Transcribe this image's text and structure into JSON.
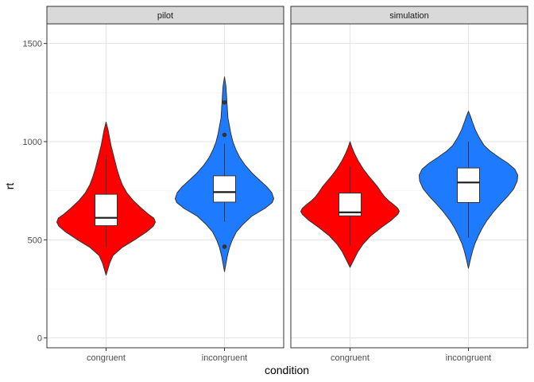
{
  "chart_data": {
    "type": "violin",
    "xlabel": "condition",
    "ylabel": "rt",
    "ylim": [
      -50,
      1600
    ],
    "yticks": [
      0,
      500,
      1000,
      1500
    ],
    "categories": [
      "congruent",
      "incongruent"
    ],
    "grid": true,
    "colors": {
      "congruent": "#ff0000",
      "incongruent": "#1e7bff"
    },
    "facets": [
      {
        "name": "pilot",
        "groups": [
          {
            "category": "congruent",
            "ymin": 320,
            "ymax": 1100,
            "profile": [
              [
                320,
                0.0
              ],
              [
                380,
                0.07
              ],
              [
                420,
                0.14
              ],
              [
                460,
                0.32
              ],
              [
                500,
                0.58
              ],
              [
                540,
                0.82
              ],
              [
                570,
                0.96
              ],
              [
                590,
                1.0
              ],
              [
                610,
                0.97
              ],
              [
                630,
                0.86
              ],
              [
                660,
                0.72
              ],
              [
                700,
                0.55
              ],
              [
                740,
                0.42
              ],
              [
                780,
                0.33
              ],
              [
                820,
                0.27
              ],
              [
                860,
                0.22
              ],
              [
                900,
                0.18
              ],
              [
                940,
                0.14
              ],
              [
                980,
                0.1
              ],
              [
                1020,
                0.07
              ],
              [
                1060,
                0.04
              ],
              [
                1100,
                0.0
              ]
            ],
            "box": {
              "q1": 572,
              "median": 612,
              "q3": 732,
              "whisker_low": 460,
              "whisker_high": 930
            },
            "outliers": []
          },
          {
            "category": "incongruent",
            "ymin": 338,
            "ymax": 1330,
            "profile": [
              [
                338,
                0.0
              ],
              [
                380,
                0.03
              ],
              [
                420,
                0.06
              ],
              [
                460,
                0.1
              ],
              [
                500,
                0.16
              ],
              [
                540,
                0.24
              ],
              [
                580,
                0.38
              ],
              [
                620,
                0.55
              ],
              [
                660,
                0.82
              ],
              [
                690,
                0.97
              ],
              [
                710,
                1.0
              ],
              [
                740,
                0.96
              ],
              [
                770,
                0.86
              ],
              [
                800,
                0.73
              ],
              [
                840,
                0.56
              ],
              [
                880,
                0.42
              ],
              [
                920,
                0.31
              ],
              [
                960,
                0.23
              ],
              [
                1000,
                0.17
              ],
              [
                1040,
                0.13
              ],
              [
                1080,
                0.1
              ],
              [
                1120,
                0.07
              ],
              [
                1160,
                0.06
              ],
              [
                1200,
                0.05
              ],
              [
                1240,
                0.04
              ],
              [
                1280,
                0.03
              ],
              [
                1330,
                0.0
              ]
            ],
            "box": {
              "q1": 692,
              "median": 743,
              "q3": 826,
              "whisker_low": 592,
              "whisker_high": 990
            },
            "outliers": [
              465,
              1035,
              1200
            ]
          }
        ]
      },
      {
        "name": "simulation",
        "groups": [
          {
            "category": "congruent",
            "ymin": 360,
            "ymax": 1000,
            "profile": [
              [
                360,
                0.0
              ],
              [
                400,
                0.08
              ],
              [
                440,
                0.16
              ],
              [
                480,
                0.27
              ],
              [
                520,
                0.42
              ],
              [
                560,
                0.62
              ],
              [
                600,
                0.84
              ],
              [
                630,
                0.97
              ],
              [
                645,
                1.0
              ],
              [
                660,
                0.97
              ],
              [
                680,
                0.88
              ],
              [
                700,
                0.78
              ],
              [
                720,
                0.7
              ],
              [
                740,
                0.64
              ],
              [
                770,
                0.56
              ],
              [
                800,
                0.46
              ],
              [
                830,
                0.36
              ],
              [
                860,
                0.27
              ],
              [
                900,
                0.17
              ],
              [
                940,
                0.09
              ],
              [
                970,
                0.04
              ],
              [
                1000,
                0.0
              ]
            ],
            "box": {
              "q1": 622,
              "median": 640,
              "q3": 738,
              "whisker_low": 470,
              "whisker_high": 875
            },
            "outliers": []
          },
          {
            "category": "incongruent",
            "ymin": 355,
            "ymax": 1155,
            "profile": [
              [
                355,
                0.0
              ],
              [
                400,
                0.04
              ],
              [
                440,
                0.08
              ],
              [
                480,
                0.13
              ],
              [
                520,
                0.2
              ],
              [
                560,
                0.28
              ],
              [
                600,
                0.38
              ],
              [
                640,
                0.5
              ],
              [
                680,
                0.64
              ],
              [
                720,
                0.79
              ],
              [
                760,
                0.92
              ],
              [
                800,
                0.99
              ],
              [
                830,
                1.0
              ],
              [
                860,
                0.94
              ],
              [
                890,
                0.8
              ],
              [
                920,
                0.62
              ],
              [
                950,
                0.45
              ],
              [
                980,
                0.32
              ],
              [
                1020,
                0.22
              ],
              [
                1060,
                0.14
              ],
              [
                1100,
                0.08
              ],
              [
                1130,
                0.04
              ],
              [
                1155,
                0.0
              ]
            ],
            "box": {
              "q1": 690,
              "median": 792,
              "q3": 866,
              "whisker_low": 510,
              "whisker_high": 1000
            },
            "outliers": []
          }
        ]
      }
    ]
  }
}
